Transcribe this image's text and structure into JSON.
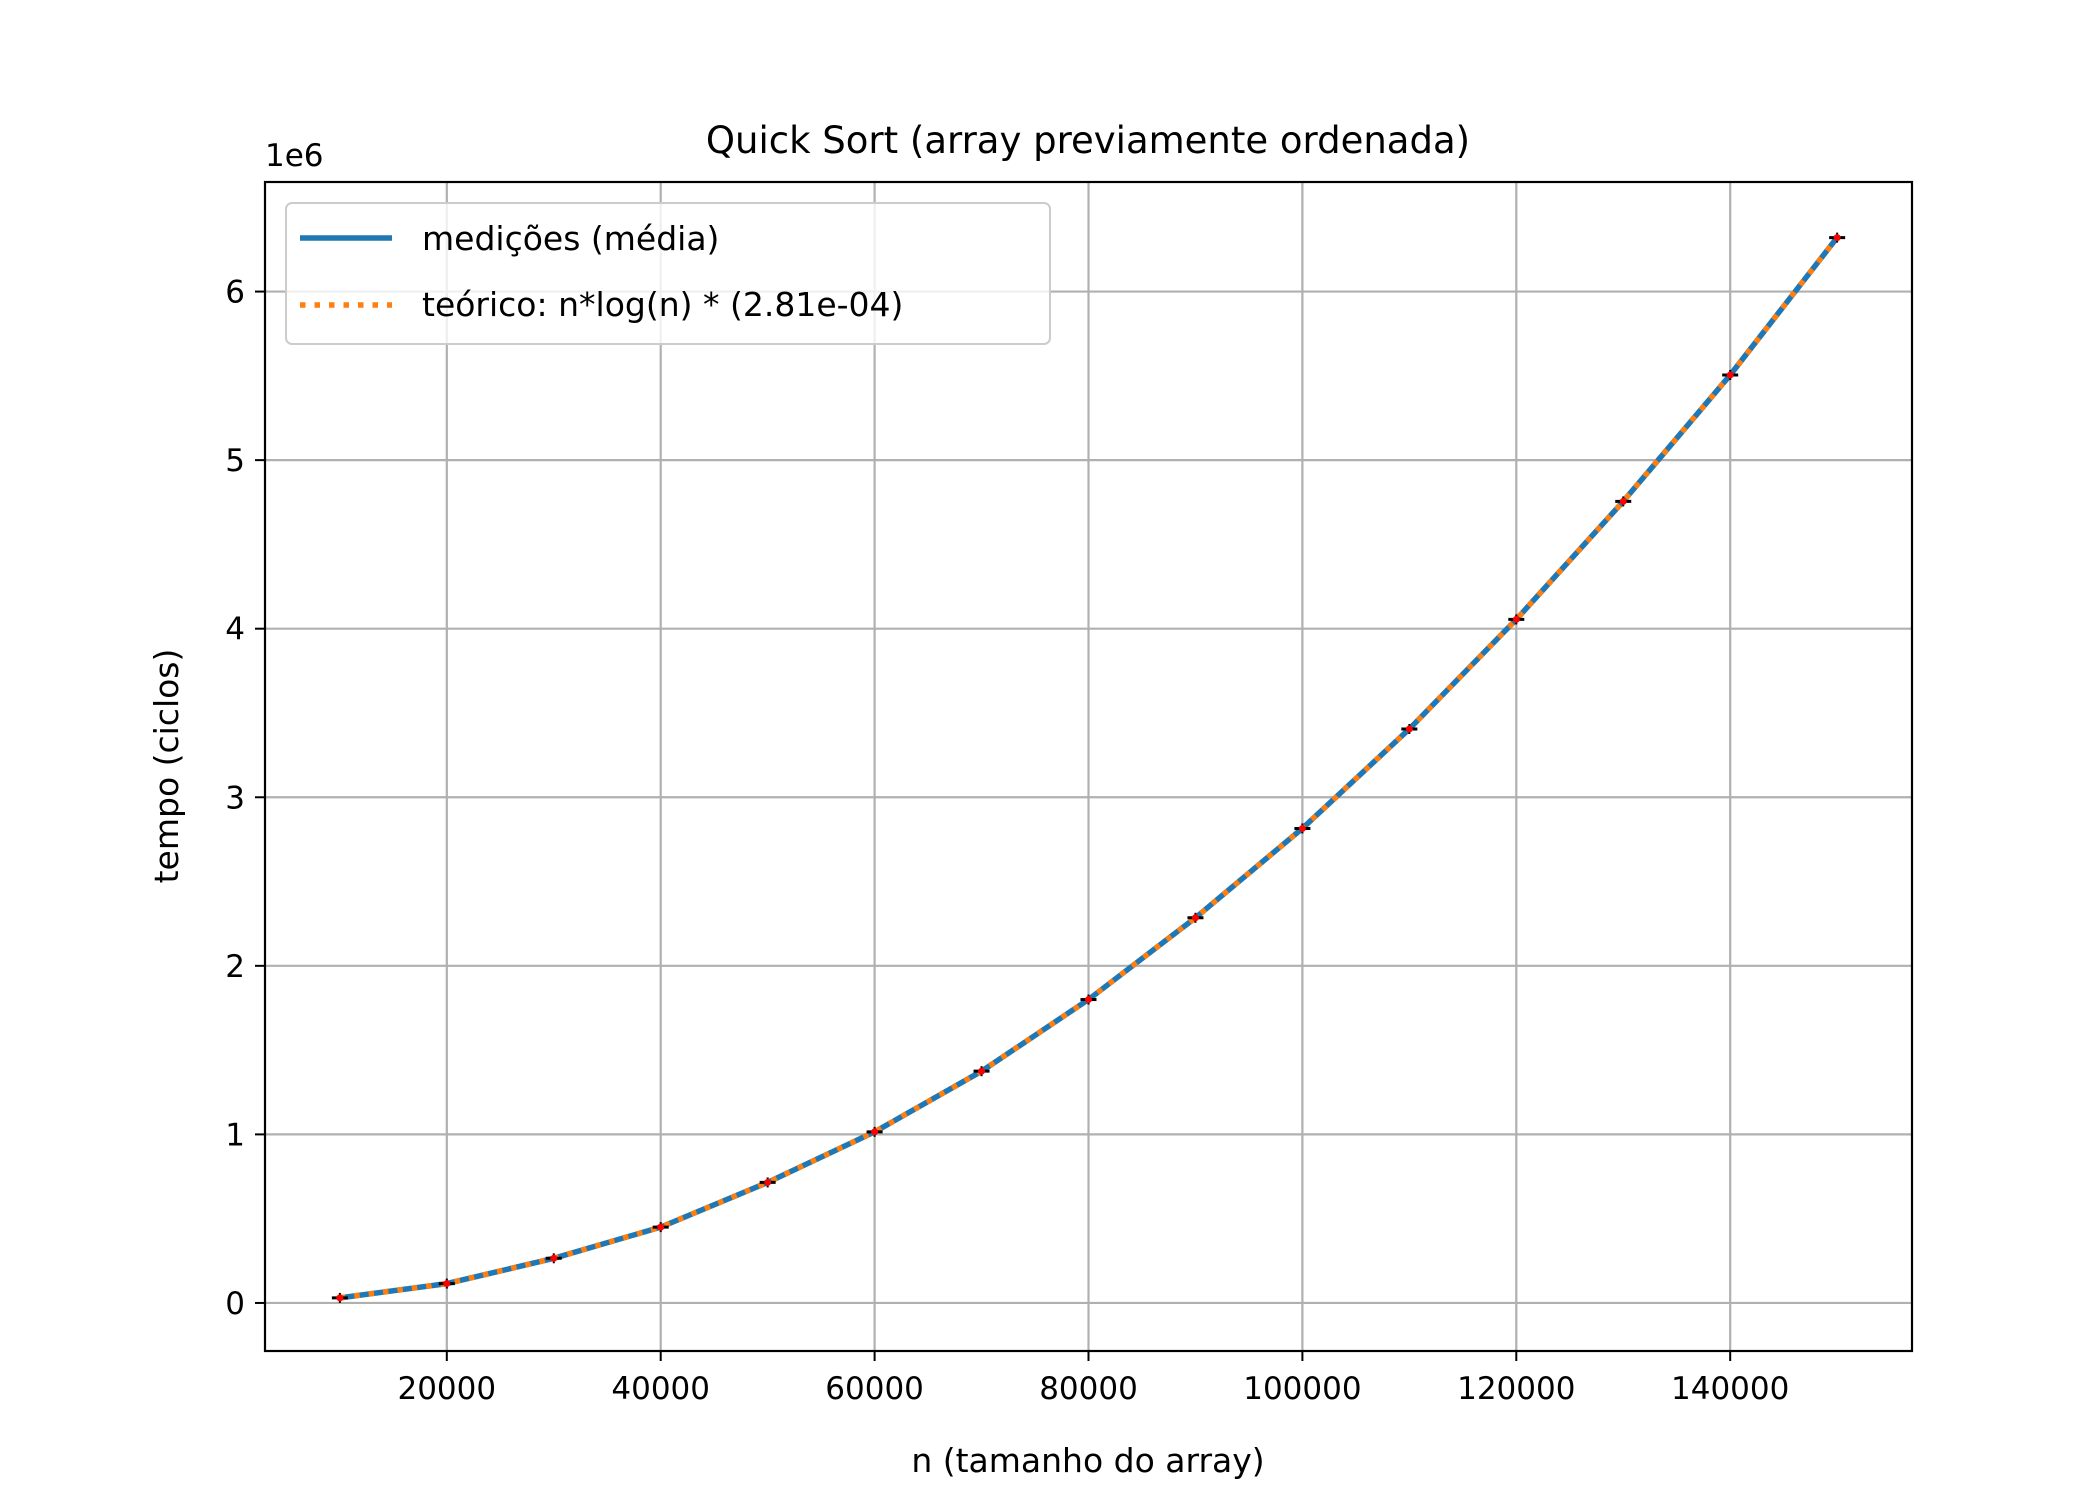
{
  "chart_data": {
    "type": "line",
    "title": "Quick Sort (array previamente ordenada)",
    "xlabel": "n (tamanho do array)",
    "ylabel": "tempo (ciclos)",
    "y_offset_label": "1e6",
    "y_scale_factor": 1000000,
    "xlim": [
      3000,
      157000
    ],
    "ylim": [
      -285000,
      6650000
    ],
    "x_ticks": [
      20000,
      40000,
      60000,
      80000,
      100000,
      120000,
      140000
    ],
    "y_ticks": [
      0,
      1,
      2,
      3,
      4,
      5,
      6
    ],
    "grid": true,
    "legend_position": "upper-left",
    "x": [
      10000,
      20000,
      30000,
      40000,
      50000,
      60000,
      70000,
      80000,
      90000,
      100000,
      110000,
      120000,
      130000,
      140000,
      150000
    ],
    "series": [
      {
        "name": "medições (média)",
        "style": "solid",
        "color": "#1f77b4",
        "values": [
          30000,
          115000,
          265000,
          450000,
          715000,
          1015000,
          1375000,
          1800000,
          2285000,
          2815000,
          3405000,
          4055000,
          4755000,
          5505000,
          6320000
        ]
      },
      {
        "name": "teórico: n*log(n) * (2.81e-04)",
        "style": "dotted",
        "color": "#ff7f0e",
        "values": [
          30000,
          115000,
          265000,
          450000,
          715000,
          1015000,
          1375000,
          1800000,
          2285000,
          2815000,
          3405000,
          4055000,
          4755000,
          5505000,
          6320000
        ]
      }
    ],
    "markers": {
      "color": "#ff0000",
      "errorbar_color": "#000000"
    }
  }
}
